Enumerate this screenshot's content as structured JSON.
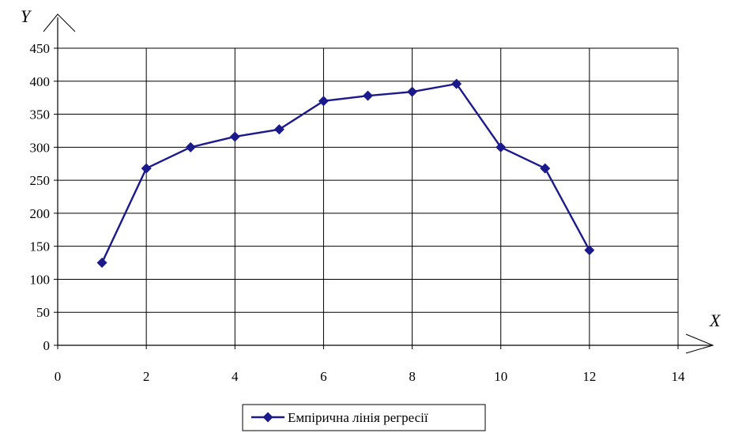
{
  "chart_data": {
    "type": "line",
    "xlabel": "X",
    "ylabel": "Y",
    "xlim": [
      0,
      14
    ],
    "ylim": [
      0,
      450
    ],
    "xticks": [
      0,
      2,
      4,
      6,
      8,
      10,
      12,
      14
    ],
    "yticks": [
      0,
      50,
      100,
      150,
      200,
      250,
      300,
      350,
      400,
      450
    ],
    "grid": true,
    "legend_position": "bottom",
    "series": [
      {
        "name": "Емпірична лінія регресії",
        "color": "#1a1a8c",
        "marker": "diamond",
        "x": [
          1,
          2,
          3,
          4,
          5,
          6,
          7,
          8,
          9,
          10,
          11,
          12
        ],
        "y": [
          125,
          268,
          300,
          316,
          327,
          370,
          378,
          384,
          396,
          300,
          268,
          144
        ]
      }
    ]
  }
}
